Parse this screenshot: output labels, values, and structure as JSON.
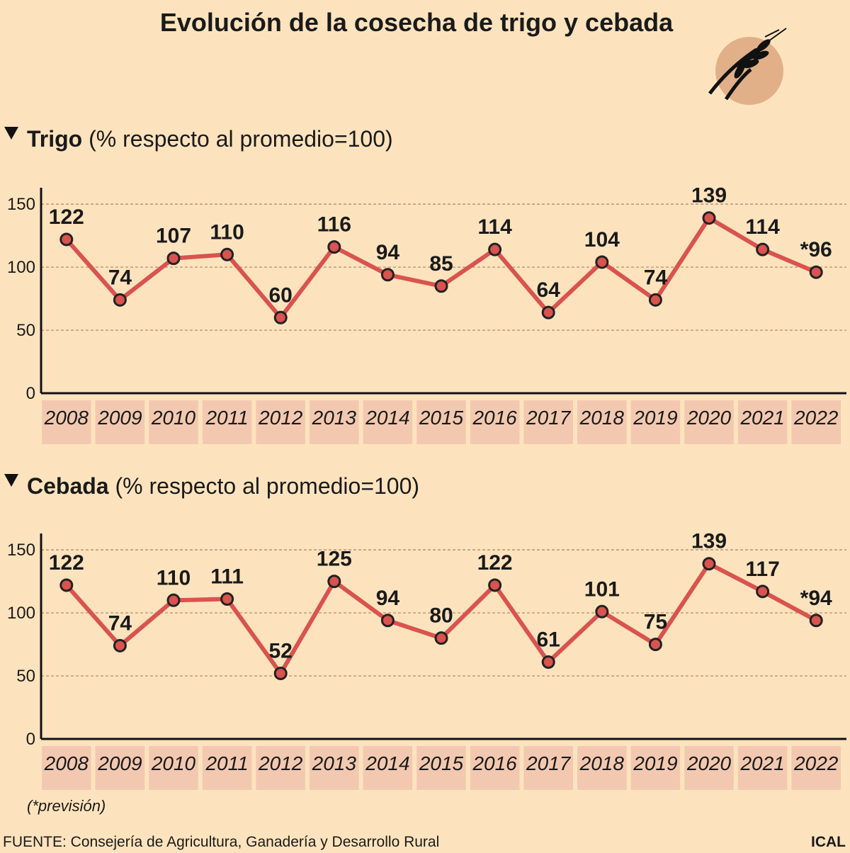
{
  "title": "Evolución de la cosecha de trigo y cebada",
  "note": "(*previsión)",
  "source": "FUENTE: Consejería de Agricultura, Ganadería y Desarrollo Rural",
  "credit": "ICAL",
  "chart_data": [
    {
      "type": "line",
      "title": "Trigo",
      "subtitle": "(% respecto al promedio=100)",
      "categories": [
        "2008",
        "2009",
        "2010",
        "2011",
        "2012",
        "2013",
        "2014",
        "2015",
        "2016",
        "2017",
        "2018",
        "2019",
        "2020",
        "2021",
        "2022"
      ],
      "series": [
        {
          "color": "#d9534f",
          "values": [
            122,
            74,
            107,
            110,
            60,
            116,
            94,
            85,
            114,
            64,
            104,
            74,
            139,
            114,
            96
          ],
          "value_labels": [
            "122",
            "74",
            "107",
            "110",
            "60",
            "116",
            "94",
            "85",
            "114",
            "64",
            "104",
            "74",
            "139",
            "114",
            "*96"
          ]
        }
      ],
      "ylim": [
        0,
        163
      ],
      "yticks": [
        0,
        50,
        100,
        150
      ],
      "grid": true
    },
    {
      "type": "line",
      "title": "Cebada",
      "subtitle": "(% respecto al promedio=100)",
      "categories": [
        "2008",
        "2009",
        "2010",
        "2011",
        "2012",
        "2013",
        "2014",
        "2015",
        "2016",
        "2017",
        "2018",
        "2019",
        "2020",
        "2021",
        "2022"
      ],
      "series": [
        {
          "color": "#d9534f",
          "values": [
            122,
            74,
            110,
            111,
            52,
            125,
            94,
            80,
            122,
            61,
            101,
            75,
            139,
            117,
            94
          ],
          "value_labels": [
            "122",
            "74",
            "110",
            "111",
            "52",
            "125",
            "94",
            "80",
            "122",
            "61",
            "101",
            "75",
            "139",
            "117",
            "*94"
          ]
        }
      ],
      "ylim": [
        0,
        163
      ],
      "yticks": [
        0,
        50,
        100,
        150
      ],
      "grid": true
    }
  ]
}
